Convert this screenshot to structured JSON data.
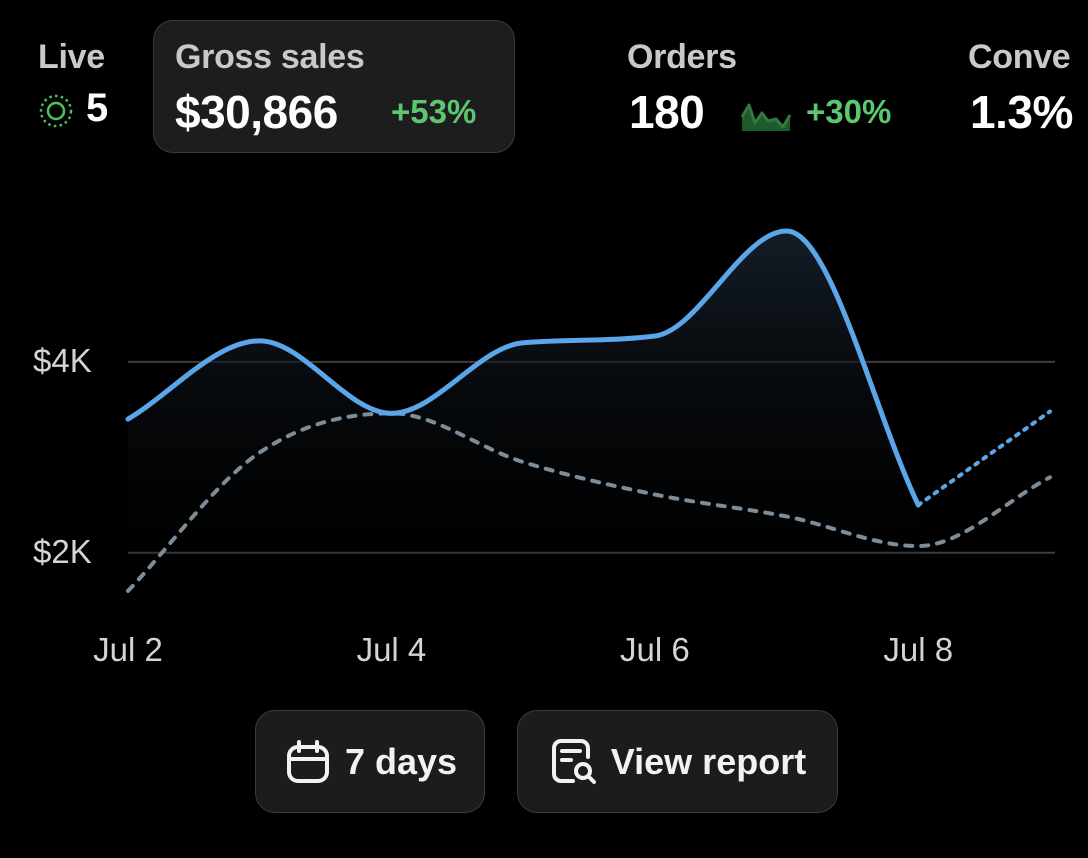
{
  "metrics": {
    "live": {
      "label": "Live",
      "value": "5"
    },
    "gross_sales": {
      "label": "Gross sales",
      "value": "$30,866",
      "change": "+53%"
    },
    "orders": {
      "label": "Orders",
      "value": "180",
      "change": "+30%"
    },
    "conversion": {
      "label": "Conve",
      "value": "1.3%"
    }
  },
  "icons": {
    "live": "live-pulse-icon",
    "orders_trend": "sparkline-icon",
    "date_range": "calendar-icon",
    "report": "report-search-icon"
  },
  "colors": {
    "background": "#000000",
    "current_series": "#5aa6e8",
    "comparison_series": "#7d8c99",
    "positive_change": "#5bc86e",
    "live_indicator": "#4cc25f"
  },
  "buttons": {
    "date_range_label": "7 days",
    "view_report_label": "View report"
  },
  "chart_data": {
    "type": "line",
    "x": [
      "Jul 2",
      "Jul 3",
      "Jul 4",
      "Jul 5",
      "Jul 6",
      "Jul 7",
      "Jul 8",
      "Jul 9"
    ],
    "x_ticks": [
      "Jul 2",
      "Jul 4",
      "Jul 6",
      "Jul 8"
    ],
    "y_ticks": [
      {
        "value": 4000,
        "label": "$4K"
      },
      {
        "value": 2000,
        "label": "$2K"
      }
    ],
    "ylim": [
      1400,
      5800
    ],
    "grid": "horizontal",
    "series": [
      {
        "role": "current",
        "values": [
          3400,
          4220,
          3460,
          4200,
          4270,
          5370,
          2500,
          3480
        ],
        "projected_from_index": 6
      },
      {
        "role": "comparison",
        "values": [
          1600,
          3050,
          3460,
          2950,
          2610,
          2380,
          2070,
          2790
        ],
        "style": "dotted"
      }
    ]
  }
}
